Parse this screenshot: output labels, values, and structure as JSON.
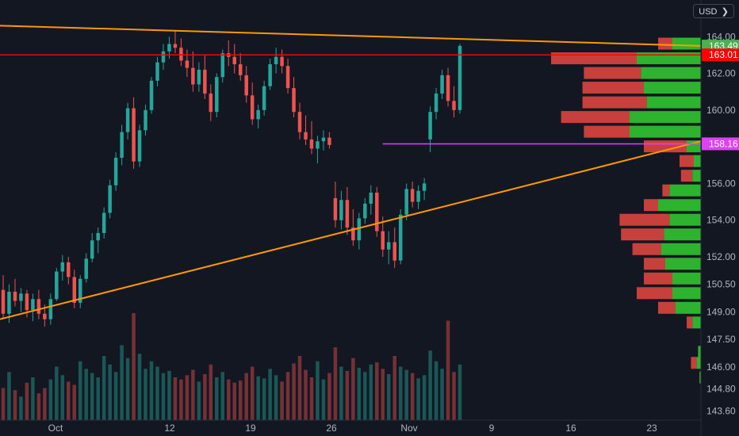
{
  "header": {
    "currency_button": "USD",
    "currency_menu_icon": "chevron-down-icon"
  },
  "colors": {
    "background": "#131722",
    "up": "#26a69a",
    "down": "#ef5350",
    "trendline": "#ff9800",
    "resistance": "#ff0000",
    "support": "#e040fb",
    "vp_up": "#2db32d",
    "vp_down": "#c8403c",
    "last_price_tag": "#4caf50"
  },
  "chart_data": {
    "type": "candlestick",
    "symbol_currency": "USD",
    "y_ticks": [
      164.0,
      162.0,
      160.0,
      156.0,
      154.0,
      152.0,
      150.5,
      149.0,
      147.5,
      146.0,
      144.8,
      143.6
    ],
    "y_tick_labels": [
      "164.00",
      "162.00",
      "160.00",
      "156.00",
      "154.00",
      "152.00",
      "150.50",
      "149.00",
      "147.50",
      "146.00",
      "144.80",
      "143.60"
    ],
    "x_tick_labels": [
      "Oct",
      "12",
      "19",
      "26",
      "Nov",
      "9",
      "16",
      "23"
    ],
    "ylim": [
      143.1,
      166.0
    ],
    "grid": false,
    "price_labels": [
      {
        "text": "163.49",
        "value": 163.49,
        "kind": "last-price"
      },
      {
        "text": "163.01",
        "value": 163.01,
        "kind": "horizontal-line"
      },
      {
        "text": "158.16",
        "value": 158.16,
        "kind": "horizontal-line"
      }
    ],
    "horizontal_lines": [
      {
        "name": "resistance",
        "value": 163.01,
        "color": "#ff0000"
      },
      {
        "name": "support",
        "value": 158.16,
        "color": "#e040fb",
        "start_label": "Nov"
      }
    ],
    "trendlines": [
      {
        "name": "upper",
        "from": [
          0,
          164.6
        ],
        "to": [
          1,
          163.5
        ]
      },
      {
        "name": "lower",
        "from": [
          0,
          148.6
        ],
        "to": [
          1,
          158.3
        ]
      }
    ],
    "volume_profile": [
      {
        "price": 163.6,
        "up": 0.2,
        "down": 0.1
      },
      {
        "price": 162.8,
        "up": 0.45,
        "down": 0.6
      },
      {
        "price": 162.0,
        "up": 0.42,
        "down": 0.4
      },
      {
        "price": 161.2,
        "up": 0.4,
        "down": 0.43
      },
      {
        "price": 160.4,
        "up": 0.38,
        "down": 0.45
      },
      {
        "price": 159.6,
        "up": 0.5,
        "down": 0.48
      },
      {
        "price": 158.8,
        "up": 0.5,
        "down": 0.32
      },
      {
        "price": 158.0,
        "up": 0.1,
        "down": 0.3
      },
      {
        "price": 157.2,
        "up": 0.05,
        "down": 0.1
      },
      {
        "price": 156.4,
        "up": 0.06,
        "down": 0.08
      },
      {
        "price": 155.6,
        "up": 0.22,
        "down": 0.05
      },
      {
        "price": 154.8,
        "up": 0.3,
        "down": 0.1
      },
      {
        "price": 154.0,
        "up": 0.22,
        "down": 0.35
      },
      {
        "price": 153.2,
        "up": 0.26,
        "down": 0.3
      },
      {
        "price": 152.4,
        "up": 0.28,
        "down": 0.2
      },
      {
        "price": 151.6,
        "up": 0.25,
        "down": 0.15
      },
      {
        "price": 150.8,
        "up": 0.2,
        "down": 0.2
      },
      {
        "price": 150.0,
        "up": 0.2,
        "down": 0.25
      },
      {
        "price": 149.2,
        "up": 0.18,
        "down": 0.12
      },
      {
        "price": 148.4,
        "up": 0.06,
        "down": 0.04
      },
      {
        "price": 146.8,
        "up": 0.02,
        "down": 0.0
      },
      {
        "price": 146.2,
        "up": 0.03,
        "down": 0.04
      },
      {
        "price": 145.4,
        "up": 0.01,
        "down": 0.0
      }
    ],
    "candles": [
      [
        150.2,
        151.0,
        148.6,
        148.9
      ],
      [
        148.9,
        150.5,
        148.4,
        150.1
      ],
      [
        150.1,
        150.8,
        149.3,
        149.6
      ],
      [
        149.6,
        150.3,
        149.0,
        150.0
      ],
      [
        150.0,
        150.2,
        148.7,
        149.1
      ],
      [
        149.1,
        150.0,
        148.5,
        149.7
      ],
      [
        149.7,
        150.2,
        148.6,
        148.9
      ],
      [
        148.9,
        149.4,
        148.2,
        148.6
      ],
      [
        148.6,
        150.0,
        148.3,
        149.7
      ],
      [
        149.7,
        151.4,
        149.6,
        151.2
      ],
      [
        151.2,
        152.1,
        150.7,
        151.7
      ],
      [
        151.7,
        152.0,
        150.5,
        150.9
      ],
      [
        150.9,
        151.3,
        149.2,
        149.5
      ],
      [
        149.5,
        151.0,
        149.2,
        150.8
      ],
      [
        150.8,
        152.2,
        150.6,
        151.9
      ],
      [
        151.9,
        153.3,
        151.7,
        152.9
      ],
      [
        152.9,
        153.6,
        152.2,
        153.3
      ],
      [
        153.3,
        154.7,
        153.0,
        154.4
      ],
      [
        154.4,
        156.2,
        154.1,
        155.9
      ],
      [
        155.9,
        157.7,
        155.6,
        157.4
      ],
      [
        157.4,
        159.2,
        157.0,
        158.8
      ],
      [
        158.8,
        160.4,
        158.4,
        160.1
      ],
      [
        160.1,
        160.7,
        156.8,
        157.2
      ],
      [
        157.2,
        159.2,
        156.9,
        158.9
      ],
      [
        158.9,
        160.3,
        158.6,
        160.0
      ],
      [
        160.0,
        161.8,
        159.8,
        161.6
      ],
      [
        161.6,
        162.9,
        161.3,
        162.6
      ],
      [
        162.6,
        163.6,
        162.2,
        163.2
      ],
      [
        163.2,
        164.0,
        162.8,
        163.6
      ],
      [
        163.6,
        164.3,
        163.1,
        163.4
      ],
      [
        163.4,
        163.9,
        162.4,
        162.7
      ],
      [
        162.7,
        163.3,
        161.8,
        162.3
      ],
      [
        162.3,
        163.2,
        161.0,
        161.4
      ],
      [
        161.4,
        162.6,
        161.0,
        162.2
      ],
      [
        162.2,
        163.0,
        160.6,
        160.9
      ],
      [
        160.9,
        161.4,
        159.4,
        159.9
      ],
      [
        159.9,
        162.0,
        159.6,
        161.8
      ],
      [
        161.8,
        163.3,
        161.5,
        163.1
      ],
      [
        163.1,
        163.8,
        162.4,
        162.9
      ],
      [
        162.9,
        163.6,
        162.0,
        162.5
      ],
      [
        162.5,
        163.1,
        161.6,
        161.9
      ],
      [
        161.9,
        162.4,
        160.4,
        160.8
      ],
      [
        160.8,
        161.5,
        159.2,
        159.5
      ],
      [
        159.5,
        160.3,
        159.0,
        160.0
      ],
      [
        160.0,
        161.6,
        159.7,
        161.3
      ],
      [
        161.3,
        162.8,
        161.1,
        162.5
      ],
      [
        162.5,
        163.4,
        162.0,
        162.9
      ],
      [
        162.9,
        163.3,
        162.0,
        162.4
      ],
      [
        162.4,
        162.8,
        160.9,
        161.2
      ],
      [
        161.2,
        161.8,
        159.6,
        159.9
      ],
      [
        159.9,
        160.4,
        158.4,
        158.8
      ],
      [
        158.8,
        159.7,
        158.1,
        158.4
      ],
      [
        158.4,
        159.4,
        157.6,
        157.9
      ],
      [
        157.9,
        158.6,
        157.1,
        158.3
      ],
      [
        158.3,
        158.9,
        157.8,
        158.5
      ],
      [
        158.5,
        158.8,
        157.9,
        158.1
      ],
      [
        155.2,
        156.1,
        153.6,
        154.0
      ],
      [
        154.0,
        155.6,
        153.5,
        155.1
      ],
      [
        155.1,
        155.8,
        153.2,
        153.6
      ],
      [
        153.6,
        154.6,
        152.6,
        152.9
      ],
      [
        152.9,
        154.4,
        152.4,
        154.1
      ],
      [
        154.1,
        155.2,
        153.8,
        154.9
      ],
      [
        154.9,
        155.9,
        154.3,
        155.5
      ],
      [
        155.5,
        155.8,
        153.1,
        153.4
      ],
      [
        153.4,
        154.2,
        152.0,
        152.4
      ],
      [
        152.4,
        153.4,
        151.6,
        152.8
      ],
      [
        152.8,
        153.6,
        151.4,
        151.8
      ],
      [
        151.8,
        154.6,
        151.6,
        154.3
      ],
      [
        154.3,
        156.0,
        154.0,
        155.7
      ],
      [
        155.7,
        156.1,
        154.7,
        155.0
      ],
      [
        155.0,
        155.9,
        154.6,
        155.6
      ],
      [
        155.6,
        156.3,
        155.1,
        156.0
      ],
      [
        158.4,
        160.2,
        157.7,
        159.9
      ],
      [
        159.9,
        161.2,
        159.5,
        160.9
      ],
      [
        160.9,
        162.2,
        160.6,
        161.9
      ],
      [
        161.9,
        162.3,
        160.2,
        160.5
      ],
      [
        160.5,
        161.3,
        159.6,
        160.0
      ],
      [
        160.0,
        163.6,
        159.8,
        163.5
      ]
    ],
    "volumes": [
      0.3,
      0.45,
      0.28,
      0.22,
      0.35,
      0.4,
      0.25,
      0.3,
      0.38,
      0.5,
      0.42,
      0.36,
      0.33,
      0.55,
      0.48,
      0.44,
      0.4,
      0.6,
      0.52,
      0.45,
      0.7,
      0.58,
      1.0,
      0.62,
      0.48,
      0.55,
      0.5,
      0.44,
      0.46,
      0.4,
      0.38,
      0.42,
      0.47,
      0.36,
      0.43,
      0.52,
      0.4,
      0.45,
      0.38,
      0.35,
      0.37,
      0.44,
      0.5,
      0.41,
      0.39,
      0.48,
      0.42,
      0.36,
      0.45,
      0.53,
      0.6,
      0.47,
      0.4,
      0.55,
      0.38,
      0.44,
      0.68,
      0.5,
      0.46,
      0.58,
      0.49,
      0.45,
      0.52,
      0.54,
      0.48,
      0.43,
      0.6,
      0.5,
      0.47,
      0.44,
      0.39,
      0.42,
      0.65,
      0.55,
      0.48,
      0.93,
      0.45,
      0.52
    ]
  }
}
